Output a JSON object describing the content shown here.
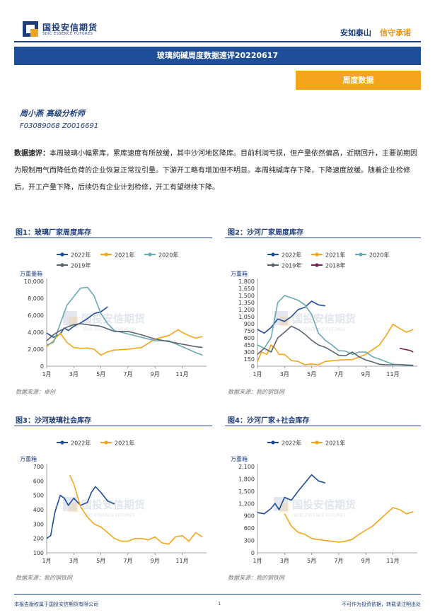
{
  "header": {
    "logo_cn": "国投安信期货",
    "logo_en": "SDIC ESSENCE FUTURES",
    "slogan_a": "安如泰山",
    "slogan_b": "信守承诺",
    "title": "玻璃纯碱周度数据速评20220617",
    "badge": "周度数据"
  },
  "analyst": {
    "name": "周小燕 高级分析师",
    "cert": "F03089068 Z0016691"
  },
  "commentary": {
    "label": "数据速评：",
    "text": "本周玻璃小幅累库，累库速度有所放缓，其中沙河地区降库。目前利润亏损，但产量依然偏高，近期回升，主要前期因为限制用气而降低负荷的企业恢复正常拉引量。下游开工略有增加但不明显。本周纯碱库存下降，下降速度放缓。随着企业检修后，开工产量下降，后续仍有企业计划检修，开工有望继续下降。"
  },
  "watermark": {
    "cn": "国投安信期货",
    "en": "SDIC ESSENCE FUTURES"
  },
  "footer": {
    "left": "本报告版权属于国投安信期货有限公司",
    "page": "1",
    "right": "不可作为投资依据，转载请注明出处"
  },
  "colors": {
    "y2022": "#1f4e99",
    "y2021": "#f5a51b",
    "y2020": "#6aa8b0",
    "y2019": "#5a6470",
    "y2018": "#7a2050",
    "brand_blue": "#1e3d7a"
  },
  "chart_data": [
    {
      "type": "line",
      "title": "图1：玻璃厂家周度库存",
      "source": "数据来源：卓创",
      "ylabel": "万重量箱",
      "ylim": [
        0,
        10000
      ],
      "yticks": [
        "0",
        "2,000",
        "4,000",
        "6,000",
        "8,000",
        "10,000"
      ],
      "ytick_values": [
        0,
        2000,
        4000,
        6000,
        8000,
        10000
      ],
      "xticks": [
        "1月",
        "3月",
        "5月",
        "7月",
        "9月",
        "11月"
      ],
      "xlim": [
        1,
        12.8
      ],
      "series": [
        {
          "name": "2022年",
          "color": "#1f4e99",
          "x": [
            1.0,
            1.5,
            2.0,
            2.3,
            2.6,
            3.0,
            3.5,
            4.0,
            4.5,
            5.0,
            5.5
          ],
          "y": [
            3900,
            3400,
            3800,
            4500,
            4200,
            4700,
            5100,
            5600,
            6200,
            6400,
            7000
          ]
        },
        {
          "name": "2021年",
          "color": "#f5a51b",
          "x": [
            1.0,
            1.5,
            2.0,
            2.5,
            3.0,
            3.5,
            4.0,
            4.5,
            5.0,
            5.5,
            6.0,
            7.0,
            8.0,
            9.0,
            10.0,
            10.7,
            11.0,
            11.5,
            12.0,
            12.5
          ],
          "y": [
            2300,
            3000,
            3900,
            2800,
            2200,
            2100,
            2150,
            2000,
            1300,
            1700,
            1900,
            2000,
            2200,
            3200,
            3600,
            4300,
            4000,
            3600,
            3300,
            3500
          ]
        },
        {
          "name": "2020年",
          "color": "#6aa8b0",
          "x": [
            1.0,
            1.5,
            2.0,
            2.5,
            3.0,
            3.5,
            4.0,
            4.5,
            5.0,
            5.5,
            6.0,
            7.0,
            8.0,
            9.0,
            10.0,
            11.0,
            12.0,
            12.5
          ],
          "y": [
            2500,
            2800,
            5000,
            7200,
            8200,
            9200,
            9300,
            8300,
            6200,
            5000,
            4200,
            3800,
            3400,
            3000,
            3000,
            2300,
            1600,
            1300
          ]
        },
        {
          "name": "2019年",
          "color": "#5a6470",
          "x": [
            1.0,
            1.5,
            2.0,
            2.5,
            3.0,
            3.5,
            4.0,
            4.5,
            5.0,
            5.5,
            6.0,
            7.0,
            8.0,
            9.0,
            10.0,
            11.0,
            12.0,
            12.5
          ],
          "y": [
            3000,
            3700,
            4200,
            4600,
            4900,
            5000,
            4900,
            4800,
            4700,
            4400,
            4100,
            4100,
            3700,
            3200,
            2900,
            2600,
            2300,
            2200
          ]
        }
      ]
    },
    {
      "type": "line",
      "title": "图2：沙河厂家周度库存",
      "source": "数据来源：我的钢铁网",
      "ylabel": "万重箱",
      "ylim": [
        0,
        1800
      ],
      "yticks": [
        "0",
        "150",
        "300",
        "450",
        "600",
        "750",
        "900",
        "1,050",
        "1,200",
        "1,350",
        "1,500",
        "1,650",
        "1,800"
      ],
      "ytick_values": [
        0,
        150,
        300,
        450,
        600,
        750,
        900,
        1050,
        1200,
        1350,
        1500,
        1650,
        1800
      ],
      "xticks": [
        "1月",
        "3月",
        "5月",
        "7月",
        "9月",
        "11月"
      ],
      "xlim": [
        1,
        12.8
      ],
      "series": [
        {
          "name": "2022年",
          "color": "#1f4e99",
          "x": [
            1.0,
            1.5,
            2.0,
            2.5,
            3.0,
            3.5,
            4.0,
            4.5,
            5.0,
            5.5,
            6.0
          ],
          "y": [
            780,
            700,
            820,
            1000,
            950,
            1050,
            1200,
            1250,
            1380,
            1300,
            1280
          ]
        },
        {
          "name": "2021年",
          "color": "#f5a51b",
          "x": [
            1.0,
            1.3,
            1.7,
            2.0,
            2.3,
            2.6,
            3.0,
            3.5,
            4.0,
            4.5,
            5.0,
            5.5,
            6.0,
            7.0,
            8.0,
            9.0,
            9.5,
            10.0,
            10.5,
            11.0,
            11.5,
            12.0,
            12.5
          ],
          "y": [
            100,
            300,
            250,
            450,
            380,
            250,
            250,
            120,
            100,
            30,
            50,
            30,
            100,
            130,
            140,
            250,
            350,
            450,
            650,
            890,
            800,
            720,
            780
          ]
        },
        {
          "name": "2020年",
          "color": "#6aa8b0",
          "x": [
            1.0,
            1.5,
            2.0,
            2.5,
            3.0,
            3.5,
            4.0,
            4.5,
            5.0,
            5.5,
            6.0,
            6.5,
            7.0,
            7.5,
            8.0,
            8.5,
            9.0,
            9.5,
            10.0,
            11.0,
            12.0,
            12.5
          ],
          "y": [
            450,
            380,
            600,
            1350,
            1500,
            1450,
            1400,
            1300,
            1100,
            700,
            550,
            450,
            330,
            320,
            250,
            300,
            300,
            200,
            150,
            40,
            30,
            20
          ]
        },
        {
          "name": "2019年",
          "color": "#5a6470",
          "x": [
            1.0,
            1.5,
            2.0,
            2.5,
            3.0,
            3.5,
            4.0,
            4.5,
            5.0,
            5.5,
            6.0,
            6.5,
            7.0,
            7.5,
            8.0,
            8.5,
            9.0,
            9.5,
            10.0,
            10.5,
            11.0,
            11.5,
            12.0,
            12.5
          ],
          "y": [
            250,
            380,
            300,
            600,
            720,
            850,
            780,
            680,
            550,
            450,
            400,
            320,
            230,
            220,
            300,
            200,
            130,
            90,
            40,
            30,
            30,
            30,
            20,
            10
          ]
        },
        {
          "name": "2018年",
          "color": "#7a2050",
          "x": [
            11.5,
            11.8,
            12.0,
            12.3,
            12.5
          ],
          "y": [
            380,
            360,
            350,
            330,
            300
          ]
        }
      ]
    },
    {
      "type": "line",
      "title": "图3：沙河玻璃社会库存",
      "source": "数据来源：我的钢铁网",
      "ylabel": "万重箱",
      "ylim": [
        100,
        700
      ],
      "yticks": [
        "100",
        "200",
        "300",
        "400",
        "500",
        "600",
        "700"
      ],
      "ytick_values": [
        100,
        200,
        300,
        400,
        500,
        600,
        700
      ],
      "xticks": [
        "1月",
        "3月",
        "5月",
        "7月",
        "9月",
        "11月"
      ],
      "xlim": [
        1,
        12.8
      ],
      "series": [
        {
          "name": "2022年",
          "color": "#1f4e99",
          "x": [
            1.0,
            1.3,
            1.6,
            2.0,
            2.3,
            2.6,
            3.0,
            3.5,
            4.0,
            4.3,
            4.6,
            5.0,
            5.5,
            6.0
          ],
          "y": [
            200,
            220,
            380,
            500,
            480,
            430,
            480,
            430,
            450,
            520,
            560,
            520,
            460,
            440
          ]
        },
        {
          "name": "2021年",
          "color": "#f5a51b",
          "x": [
            2.7,
            3.0,
            3.5,
            4.0,
            4.5,
            5.0,
            5.5,
            6.0,
            6.5,
            7.0,
            7.5,
            8.0,
            8.5,
            9.0,
            9.5,
            10.0,
            10.5,
            11.0,
            11.5,
            12.0,
            12.5
          ],
          "y": [
            640,
            580,
            420,
            350,
            300,
            280,
            240,
            200,
            180,
            180,
            200,
            200,
            190,
            210,
            170,
            160,
            210,
            220,
            180,
            240,
            210
          ]
        }
      ]
    },
    {
      "type": "line",
      "title": "图4：沙河厂家+社会库存",
      "source": "数据来源：我的钢铁网",
      "ylabel": "万重箱",
      "ylim": [
        0,
        2100
      ],
      "yticks": [
        "0",
        "300",
        "600",
        "900",
        "1,200",
        "1,500",
        "1,800",
        "2,100"
      ],
      "ytick_values": [
        0,
        300,
        600,
        900,
        1200,
        1500,
        1800,
        2100
      ],
      "xticks": [
        "1月",
        "3月",
        "5月",
        "7月",
        "9月",
        "11月"
      ],
      "xlim": [
        1,
        12.8
      ],
      "series": [
        {
          "name": "2022年",
          "color": "#1f4e99",
          "x": [
            1.0,
            1.5,
            2.0,
            2.3,
            2.6,
            3.0,
            3.5,
            4.0,
            4.5,
            5.0,
            5.5,
            6.0
          ],
          "y": [
            980,
            950,
            1080,
            1200,
            1050,
            1350,
            1280,
            1500,
            1700,
            1900,
            1750,
            1700
          ]
        },
        {
          "name": "2021年",
          "color": "#f5a51b",
          "x": [
            3.0,
            3.5,
            4.0,
            4.5,
            5.0,
            5.5,
            6.0,
            6.5,
            7.0,
            7.5,
            8.0,
            8.5,
            9.0,
            9.5,
            10.0,
            10.5,
            11.0,
            11.5,
            12.0,
            12.5
          ],
          "y": [
            950,
            650,
            500,
            450,
            350,
            320,
            300,
            280,
            260,
            280,
            330,
            450,
            550,
            650,
            800,
            950,
            1100,
            1050,
            950,
            1000
          ]
        }
      ]
    }
  ]
}
